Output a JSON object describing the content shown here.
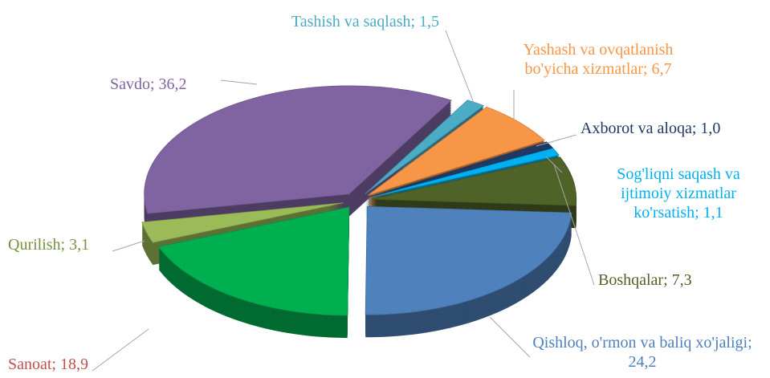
{
  "chart_data": {
    "type": "pie",
    "values": [
      1.5,
      6.7,
      1.0,
      1.1,
      7.3,
      24.2,
      18.9,
      3.1,
      36.2
    ],
    "value_labels": [
      "Tashish va saqlash; 1,5",
      "Yashash va ovqatlanish bo'yicha xizmatlar; 6,7",
      "Axborot va aloqa; 1,0",
      "Sog'liqni saqash va ijtimoiy xizmatlar ko'rsatish; 1,1",
      "Boshqalar; 7,3",
      "Qishloq, o'rmon va baliq xo'jaligi; 24,2",
      "Sanoat; 18,9",
      "Qurilish; 3,1",
      "Savdo; 36,2"
    ],
    "colors": [
      "#4bacc6",
      "#f79646",
      "#1f3864",
      "#00b0f0",
      "#4f6228",
      "#4f81bd",
      "#00b050",
      "#9bbb59",
      "#8064a2"
    ],
    "label_colors": [
      "#4bacc6",
      "#f79646",
      "#1f3864",
      "#00b0f0",
      "#4f6228",
      "#4f81bd",
      "#c0504d",
      "#76923c",
      "#8064a2"
    ]
  }
}
